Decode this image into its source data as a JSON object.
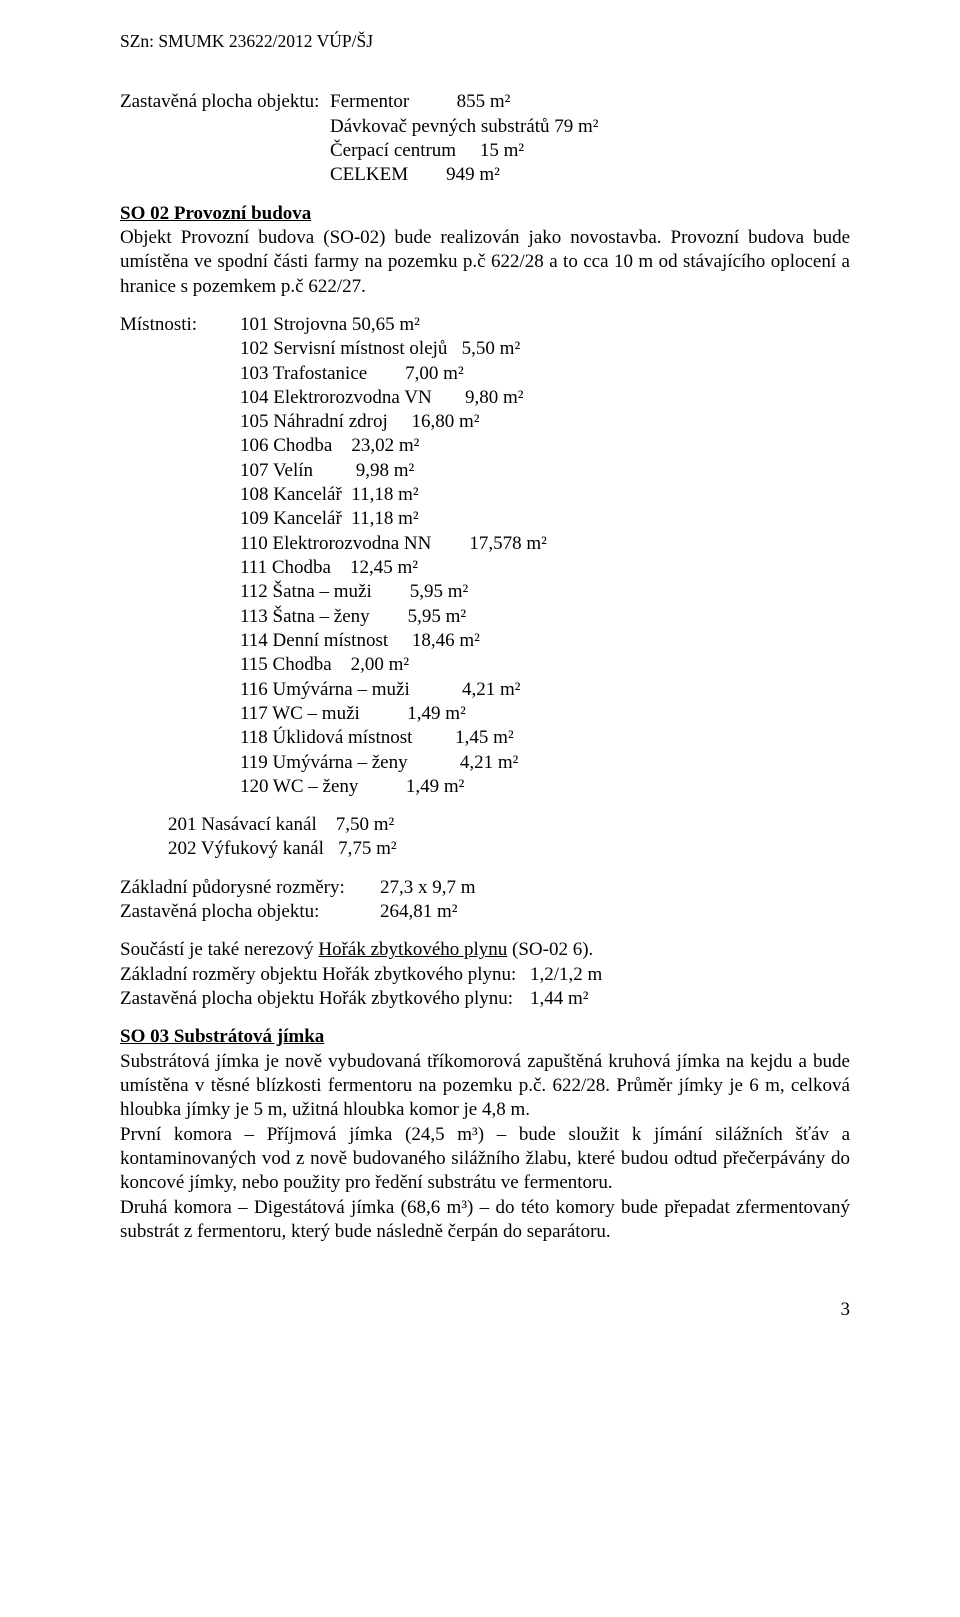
{
  "header_ref": "SZn: SMUMK 23622/2012 VÚP/ŠJ",
  "zast1_label": "Zastavěná plocha objektu:",
  "zast1_lines": "Fermentor          855 m²\nDávkovač pevných substrátů 79 m²\nČerpací centrum     15 m²\nCELKEM        949 m²",
  "so02_title": "SO 02 Provozní budova",
  "so02_para": "Objekt Provozní budova (SO-02) bude realizován jako novostavba. Provozní budova bude umístěna ve spodní části farmy na pozemku p.č 622/28 a to cca 10 m od stávajícího oplocení a hranice s pozemkem p.č 622/27.",
  "mist_label": "Místnosti:",
  "mist_list": "101 Strojovna 50,65 m²\n102 Servisní místnost olejů   5,50 m²\n103 Trafostanice        7,00 m²\n104 Elektrorozvodna VN       9,80 m²\n105 Náhradní zdroj     16,80 m²\n106 Chodba    23,02 m²\n107 Velín         9,98 m²\n108 Kancelář  11,18 m²\n109 Kancelář  11,18 m²\n110 Elektrorozvodna NN        17,578 m²\n111 Chodba    12,45 m²\n112 Šatna – muži        5,95 m²\n113 Šatna – ženy        5,95 m²\n114 Denní místnost     18,46 m²\n115 Chodba    2,00 m²\n116 Umývárna – muži           4,21 m²\n117 WC – muži          1,49 m²\n118 Úklidová místnost         1,45 m²\n119 Umývárna – ženy           4,21 m²\n120 WC – ženy          1,49 m²",
  "kanal_block": "201 Nasávací kanál    7,50 m²\n202 Výfukový kanál   7,75 m²",
  "dims_label1": "Základní půdorysné rozměry:",
  "dims_val1": "27,3 x 9,7 m",
  "dims_label2": "Zastavěná plocha objektu:",
  "dims_val2": "264,81 m²",
  "horak_pre": "Součástí je také nerezový ",
  "horak_u_text": "Hořák zbytkového plynu",
  "horak_post": " (SO-02 6).",
  "horak_row1_label": "Základní rozměry objektu Hořák zbytkového plynu:",
  "horak_row1_val": "1,2/1,2 m",
  "horak_row2_label": "Zastavěná plocha objektu Hořák zbytkového plynu:",
  "horak_row2_val": "1,44 m²",
  "so03_title": "SO 03 Substrátová jímka",
  "so03_para1": "Substrátová jímka je nově vybudovaná tříkomorová zapuštěná kruhová jímka na kejdu a bude umístěna v těsné blízkosti fermentoru na pozemku p.č. 622/28. Průměr jímky je 6 m, celková hloubka jímky je 5 m, užitná hloubka komor je 4,8 m.",
  "so03_para2": "První komora – Příjmová jímka (24,5 m³) – bude sloužit k jímání silážních šťáv a kontaminovaných vod z nově budovaného silážního žlabu, které budou odtud přečerpávány do koncové jímky, nebo použity pro ředění substrátu ve fermentoru.",
  "so03_para3": "Druhá komora – Digestátová jímka (68,6 m³) – do této komory bude přepadat zfermentovaný substrát z fermentoru, který bude následně čerpán do separátoru.",
  "page_number": "3"
}
